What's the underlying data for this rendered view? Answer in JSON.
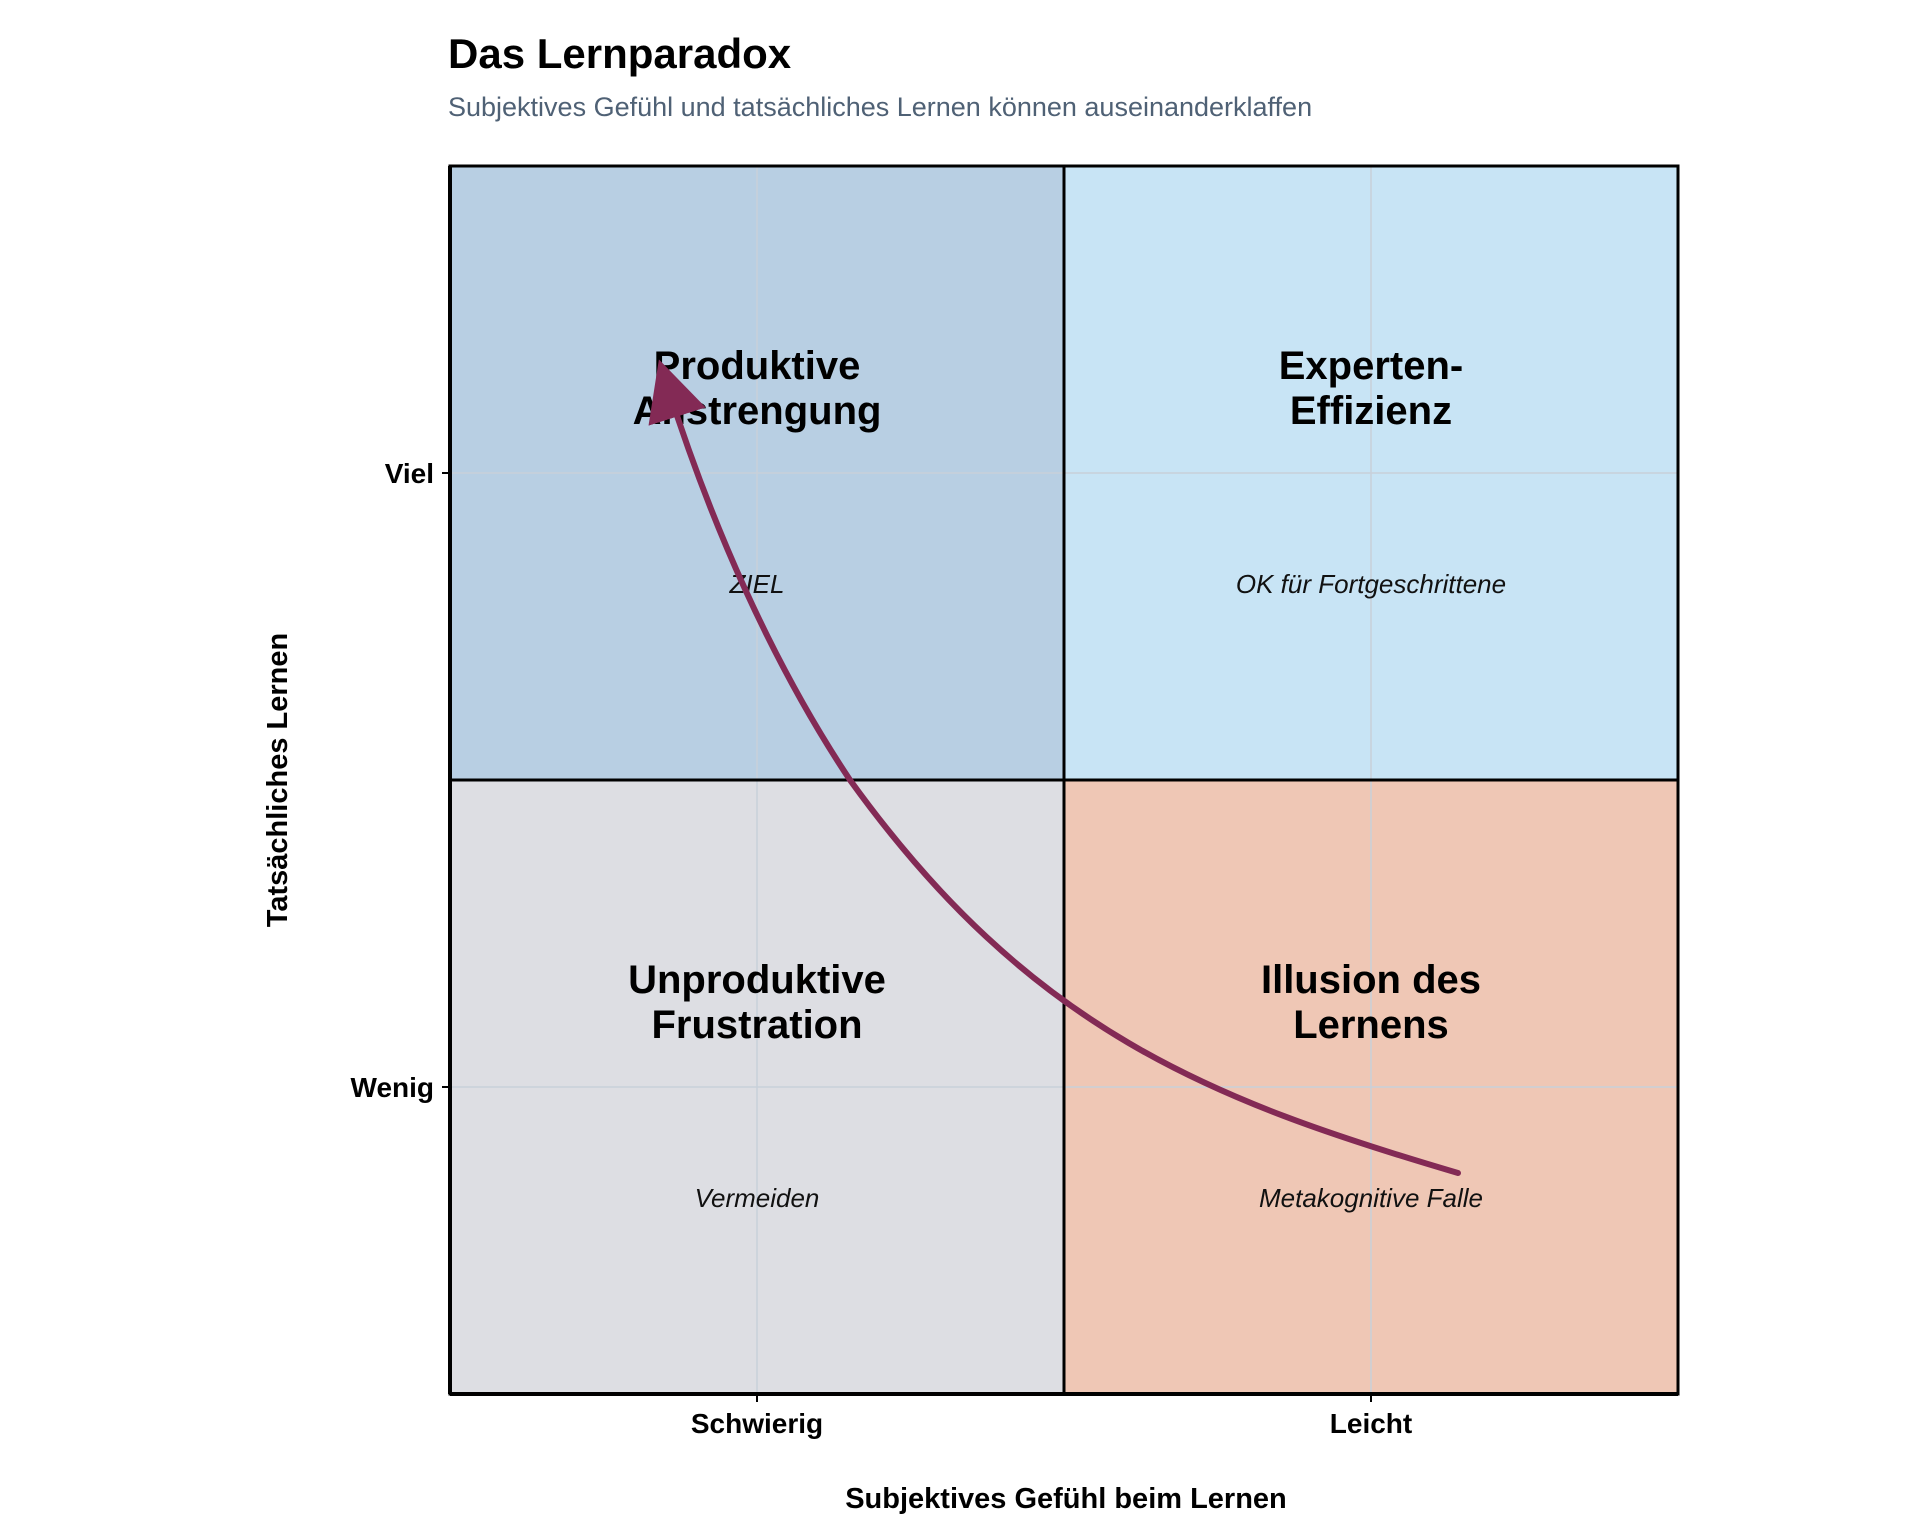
{
  "title": "Das Lernparadox",
  "subtitle": "Subjektives Gefühl und tatsächliches Lernen können auseinanderklaffen",
  "chart": {
    "x_axis_label": "Subjektives Gefühl beim Lernen",
    "y_axis_label": "Tatsächliches Lernen",
    "x_ticks": [
      "Schwierig",
      "Leicht"
    ],
    "y_ticks": [
      "Viel",
      "Wenig"
    ],
    "quadrants": [
      {
        "id": "top-left",
        "title_lines": [
          "Produktive",
          "Anstrengung"
        ],
        "note": "ZIEL",
        "color": "#b8cfe3"
      },
      {
        "id": "top-right",
        "title_lines": [
          "Experten-",
          "Effizienz"
        ],
        "note": "OK für Fortgeschrittene",
        "color": "#c8e4f5"
      },
      {
        "id": "bottom-left",
        "title_lines": [
          "Unproduktive",
          "Frustration"
        ],
        "note": "Vermeiden",
        "color": "#dddee3"
      },
      {
        "id": "bottom-right",
        "title_lines": [
          "Illusion des",
          "Lernens"
        ],
        "note": "Metakognitive Falle",
        "color": "#efc7b5"
      }
    ],
    "arrow_color": "#832a55",
    "grid_color": "#c8d0da",
    "border_color": "#000000"
  }
}
